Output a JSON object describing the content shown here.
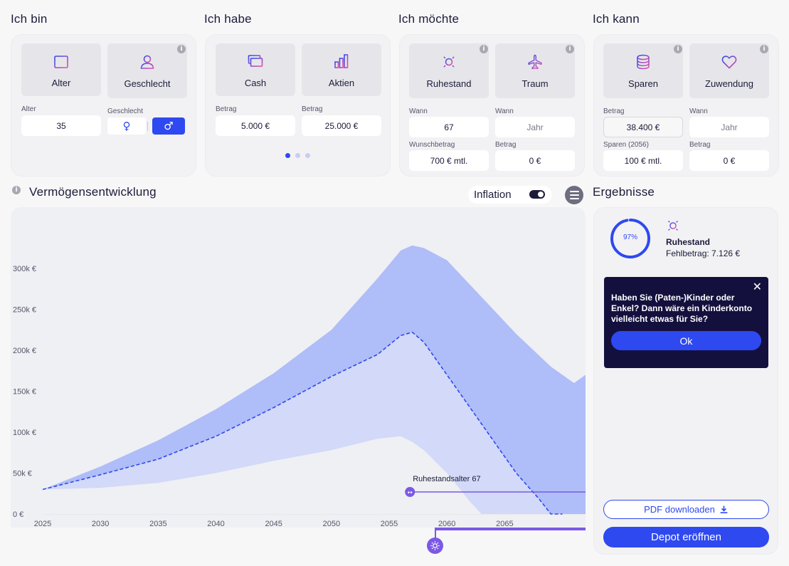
{
  "sections": {
    "ich_bin": "Ich bin",
    "ich_habe": "Ich habe",
    "ich_moechte": "Ich möchte",
    "ich_kann": "Ich kann"
  },
  "bin": {
    "tiles": [
      {
        "label": "Alter",
        "icon": "calendar-icon"
      },
      {
        "label": "Geschlecht",
        "icon": "person-icon"
      }
    ],
    "alter_label": "Alter",
    "alter_value": "35",
    "geschlecht_label": "Geschlecht",
    "female_symbol": "♀",
    "male_symbol": "♂",
    "selected": "male"
  },
  "habe": {
    "tiles": [
      {
        "label": "Cash",
        "icon": "cash-icon"
      },
      {
        "label": "Aktien",
        "icon": "bar-chart-icon"
      }
    ],
    "fields": [
      {
        "label": "Betrag",
        "value": "5.000 €"
      },
      {
        "label": "Betrag",
        "value": "25.000 €"
      }
    ],
    "pagination_active": 0,
    "pagination_count": 3
  },
  "moechte": {
    "tiles": [
      {
        "label": "Ruhestand",
        "icon": "sun-icon"
      },
      {
        "label": "Traum",
        "icon": "airplane-icon"
      }
    ],
    "wann_label_1": "Wann",
    "wann_value_1": "67",
    "wann_label_2": "Wann",
    "wann_placeholder_2": "Jahr",
    "wunsch_label": "Wunschbetrag",
    "wunsch_value": "700 € mtl.",
    "betrag_label": "Betrag",
    "betrag_value": "0 €"
  },
  "kann": {
    "tiles": [
      {
        "label": "Sparen",
        "icon": "coins-icon"
      },
      {
        "label": "Zuwendung",
        "icon": "heart-icon"
      }
    ],
    "betrag_label": "Betrag",
    "betrag_value": "38.400 €",
    "wann_label": "Wann",
    "wann_placeholder": "Jahr",
    "sparen_label": "Sparen (2056)",
    "sparen_value": "100 € mtl.",
    "betrag2_label": "Betrag",
    "betrag2_value": "0 €"
  },
  "chart_header": {
    "title": "Vermögensentwicklung",
    "inflation_label": "Inflation",
    "inflation_on": true
  },
  "chart_data": {
    "type": "area",
    "x_ticks": [
      "2025",
      "2030",
      "2035",
      "2040",
      "2045",
      "2050",
      "2055",
      "2060",
      "2065"
    ],
    "y_ticks": [
      "0 €",
      "50k €",
      "100k €",
      "150k €",
      "200k €",
      "250k €",
      "300k €"
    ],
    "xlim": [
      2025,
      2072
    ],
    "ylim": [
      0,
      340000
    ],
    "series": [
      {
        "kind": "upper",
        "x": [
          2025,
          2030,
          2035,
          2040,
          2045,
          2050,
          2054,
          2056,
          2057,
          2058,
          2060,
          2063,
          2066,
          2069,
          2071,
          2072
        ],
        "values": [
          30000,
          58000,
          90000,
          128000,
          172000,
          225000,
          288000,
          322000,
          328000,
          325000,
          310000,
          265000,
          220000,
          180000,
          160000,
          170000
        ]
      },
      {
        "kind": "median",
        "x": [
          2025,
          2030,
          2035,
          2040,
          2045,
          2050,
          2054,
          2056,
          2057,
          2058,
          2060,
          2063,
          2066,
          2068,
          2069,
          2070
        ],
        "values": [
          30000,
          48000,
          67000,
          95000,
          130000,
          168000,
          195000,
          218000,
          222000,
          210000,
          170000,
          110000,
          50000,
          18000,
          0,
          0
        ]
      },
      {
        "kind": "lower",
        "x": [
          2025,
          2030,
          2035,
          2040,
          2045,
          2050,
          2054,
          2056,
          2057,
          2058,
          2060,
          2062,
          2063,
          2064
        ],
        "values": [
          30000,
          32000,
          38000,
          50000,
          65000,
          78000,
          92000,
          95000,
          88000,
          78000,
          50000,
          15000,
          0,
          0
        ]
      }
    ],
    "colors": {
      "upper": "#afbdf8",
      "middle": "#d3d9f8",
      "median": "#2e49f0",
      "marker": "#7b58e6"
    },
    "annotation": "Ruhestandsalter 67",
    "retirement_year": 2056.8
  },
  "results": {
    "title": "Ergebnisse",
    "percent": "97%",
    "percent_value": 0.97,
    "goal_label": "Ruhestand",
    "gap_label": "Fehlbetrag: 7.126 €",
    "promo_text": "Haben Sie (Paten-)Kinder oder Enkel? Dann wäre ein Kinderkonto vielleicht etwas für Sie?",
    "promo_ok": "Ok",
    "pdf_label": "PDF downloaden",
    "depot_label": "Depot eröffnen"
  }
}
